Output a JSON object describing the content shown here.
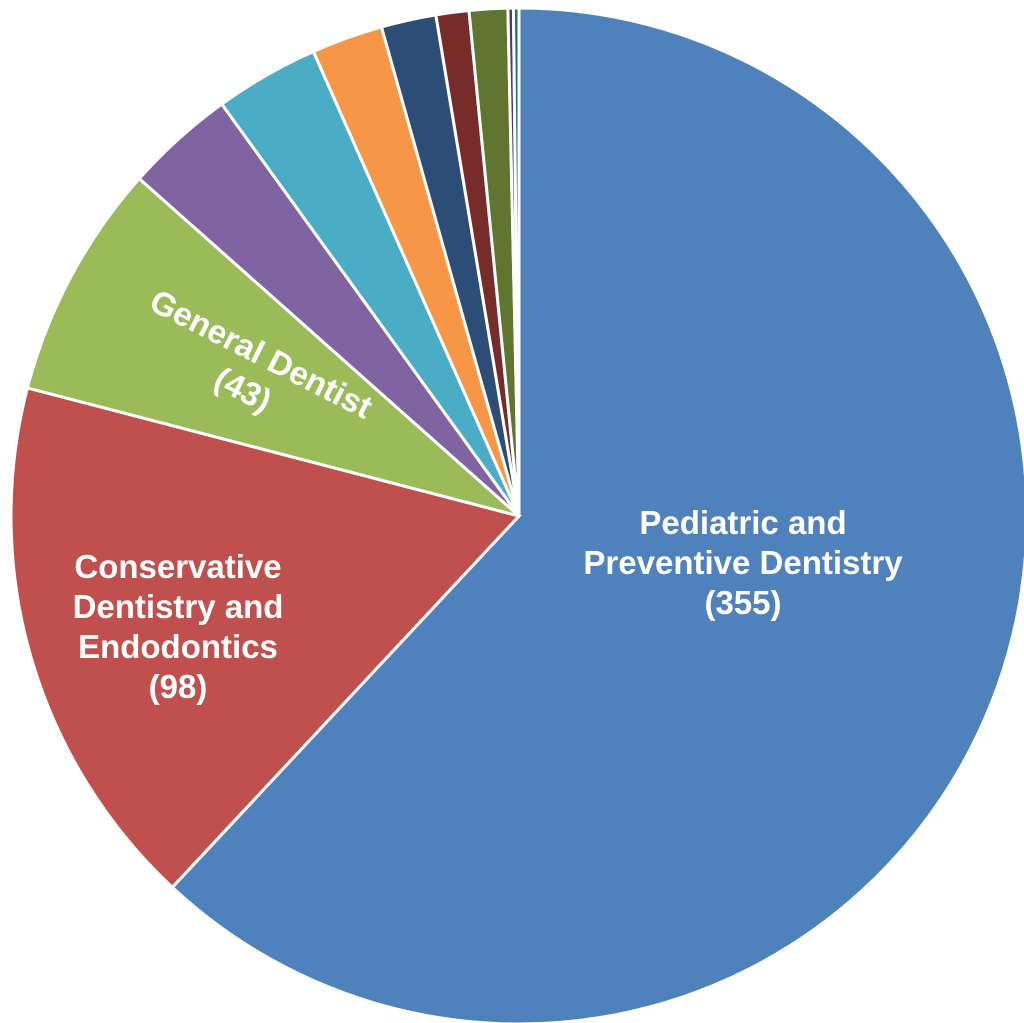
{
  "chart_data": {
    "type": "pie",
    "start_angle_deg": 0,
    "direction": "clockwise",
    "slices": [
      {
        "name": "Pediatric and Preventive Dentistry",
        "value": 355,
        "color": "#4F81BD",
        "label_lines": [
          "Pediatric and",
          "Preventive Dentistry",
          "(355)"
        ],
        "label_rotation_deg": 0
      },
      {
        "name": "Conservative Dentistry and Endodontics",
        "value": 98,
        "color": "#C0504D",
        "label_lines": [
          "Conservative",
          "Dentistry and",
          "Endodontics",
          "(98)"
        ],
        "label_rotation_deg": 0
      },
      {
        "name": "General Dentist",
        "value": 43,
        "color": "#9BBB59",
        "label_lines": [
          "General Dentist",
          "(43)"
        ],
        "label_rotation_deg": 27
      },
      {
        "name": "",
        "value": 20,
        "color": "#8064A2",
        "label_lines": [],
        "label_rotation_deg": 0
      },
      {
        "name": "",
        "value": 19,
        "color": "#4BACC6",
        "label_lines": [],
        "label_rotation_deg": 0
      },
      {
        "name": "",
        "value": 13,
        "color": "#F79646",
        "label_lines": [],
        "label_rotation_deg": 0
      },
      {
        "name": "",
        "value": 10,
        "color": "#2C4D75",
        "label_lines": [],
        "label_rotation_deg": 0
      },
      {
        "name": "",
        "value": 6,
        "color": "#772C2A",
        "label_lines": [],
        "label_rotation_deg": 0
      },
      {
        "name": "",
        "value": 7,
        "color": "#5F7530",
        "label_lines": [],
        "label_rotation_deg": 0
      },
      {
        "name": "",
        "value": 1,
        "color": "#4D3B62",
        "label_lines": [],
        "label_rotation_deg": 0
      },
      {
        "name": "",
        "value": 1,
        "color": "#276A7C",
        "label_lines": [],
        "label_rotation_deg": 0
      }
    ]
  }
}
